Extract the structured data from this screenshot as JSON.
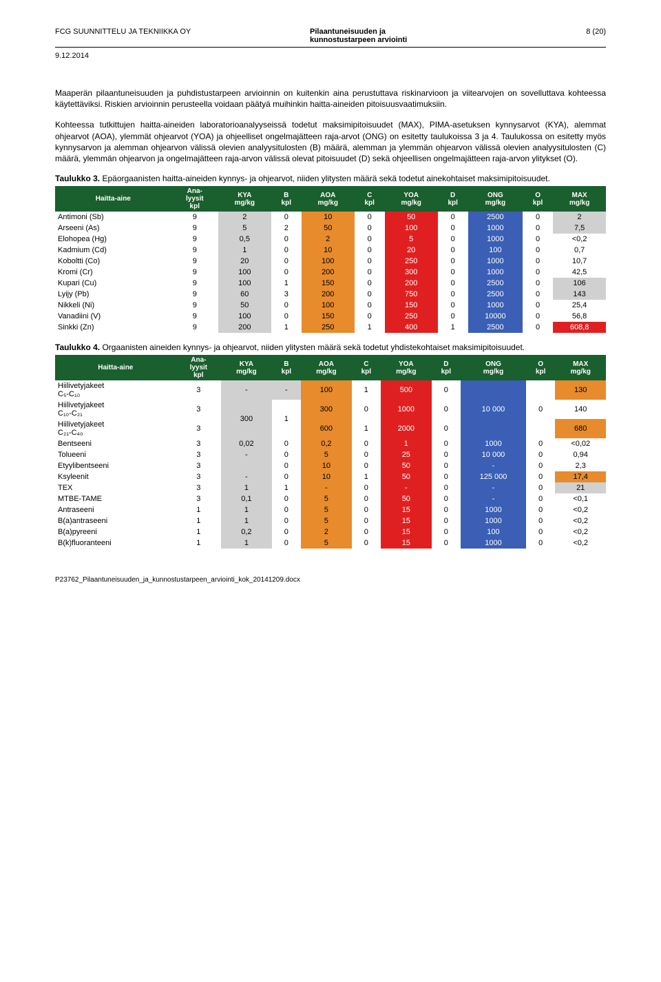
{
  "header": {
    "company": "FCG SUUNNITTELU JA TEKNIIKKA OY",
    "doc_title1": "Pilaantuneisuuden ja",
    "doc_title2": "kunnostustarpeen arviointi",
    "page": "8 (20)",
    "date": "9.12.2014"
  },
  "paragraphs": {
    "p1": "Maaperän pilaantuneisuuden ja puhdistustarpeen arvioinnin on kuitenkin aina perustuttava riskinarvioon ja viitearvojen on sovelluttava kohteessa käytettäviksi. Riskien arvioinnin perusteella voidaan päätyä muihinkin haitta-aineiden pitoisuusvaatimuksiin.",
    "p2": "Kohteessa tutkittujen haitta-aineiden laboratorioanalyyseissä todetut maksimipitoisuudet (MAX), PIMA-asetuksen kynnysarvot (KYA), alemmat ohjearvot (AOA), ylemmät ohjearvot (YOA) ja ohjeelliset ongelmajätteen raja-arvot (ONG) on esitetty taulukoissa 3 ja 4. Taulukossa on esitetty myös kynnysarvon ja alemman ohjearvon välissä olevien analyysitulosten (B) määrä, alemman ja ylemmän ohjearvon välissä olevien analyysitulosten (C) määrä, ylemmän ohjearvon ja ongelmajätteen raja-arvon välissä olevat pitoisuudet (D) sekä ohjeellisen ongelmajätteen raja-arvon ylitykset (O)."
  },
  "caption3_bold": "Taulukko 3.",
  "caption3_rest": " Epäorgaanisten haitta-aineiden kynnys- ja ohjearvot, niiden ylitysten määrä sekä todetut ainekohtaiset maksimipitoisuudet.",
  "caption4_bold": "Taulukko 4.",
  "caption4_rest": " Orgaanisten aineiden kynnys- ja ohjearvot, niiden ylitysten määrä sekä todetut yhdistekohtaiset maksimipitoisuudet.",
  "columns": [
    "Haitta-aine",
    "Ana-\nlyysit\nkpl",
    "KYA\nmg/kg",
    "B\nkpl",
    "AOA\nmg/kg",
    "C\nkpl",
    "YOA\nmg/kg",
    "D\nkpl",
    "ONG\nmg/kg",
    "O\nkpl",
    "MAX\nmg/kg"
  ],
  "colors": {
    "header_bg": "#1a5f2e",
    "grey": "#d0d0d0",
    "orange": "#e88b2d",
    "red": "#e02020",
    "blue": "#3a5fb5",
    "red_text": "#ffffff",
    "blue_text": "#ffffff",
    "orange_text": "#000000",
    "grey_text": "#000000",
    "black_text": "#000000"
  },
  "table3": [
    {
      "name": "Antimoni (Sb)",
      "ana": "9",
      "kya": "2",
      "b": "0",
      "aoa": "10",
      "c": "0",
      "yoa": "50",
      "d": "0",
      "ong": "2500",
      "o": "0",
      "max": "2",
      "max_bg": "grey"
    },
    {
      "name": "Arseeni (As)",
      "ana": "9",
      "kya": "5",
      "b": "2",
      "aoa": "50",
      "c": "0",
      "yoa": "100",
      "d": "0",
      "ong": "1000",
      "o": "0",
      "max": "7,5",
      "max_bg": "grey"
    },
    {
      "name": "Elohopea (Hg)",
      "ana": "9",
      "kya": "0,5",
      "b": "0",
      "aoa": "2",
      "c": "0",
      "yoa": "5",
      "d": "0",
      "ong": "1000",
      "o": "0",
      "max": "<0,2",
      "max_bg": ""
    },
    {
      "name": "Kadmium (Cd)",
      "ana": "9",
      "kya": "1",
      "b": "0",
      "aoa": "10",
      "c": "0",
      "yoa": "20",
      "d": "0",
      "ong": "100",
      "o": "0",
      "max": "0,7",
      "max_bg": ""
    },
    {
      "name": "Koboltti (Co)",
      "ana": "9",
      "kya": "20",
      "b": "0",
      "aoa": "100",
      "c": "0",
      "yoa": "250",
      "d": "0",
      "ong": "1000",
      "o": "0",
      "max": "10,7",
      "max_bg": ""
    },
    {
      "name": "Kromi (Cr)",
      "ana": "9",
      "kya": "100",
      "b": "0",
      "aoa": "200",
      "c": "0",
      "yoa": "300",
      "d": "0",
      "ong": "1000",
      "o": "0",
      "max": "42,5",
      "max_bg": ""
    },
    {
      "name": "Kupari (Cu)",
      "ana": "9",
      "kya": "100",
      "b": "1",
      "aoa": "150",
      "c": "0",
      "yoa": "200",
      "d": "0",
      "ong": "2500",
      "o": "0",
      "max": "106",
      "max_bg": "grey"
    },
    {
      "name": "Lyijy (Pb)",
      "ana": "9",
      "kya": "60",
      "b": "3",
      "aoa": "200",
      "c": "0",
      "yoa": "750",
      "d": "0",
      "ong": "2500",
      "o": "0",
      "max": "143",
      "max_bg": "grey"
    },
    {
      "name": "Nikkeli (Ni)",
      "ana": "9",
      "kya": "50",
      "b": "0",
      "aoa": "100",
      "c": "0",
      "yoa": "150",
      "d": "0",
      "ong": "1000",
      "o": "0",
      "max": "25,4",
      "max_bg": ""
    },
    {
      "name": "Vanadiini (V)",
      "ana": "9",
      "kya": "100",
      "b": "0",
      "aoa": "150",
      "c": "0",
      "yoa": "250",
      "d": "0",
      "ong": "10000",
      "o": "0",
      "max": "56,8",
      "max_bg": ""
    },
    {
      "name": "Sinkki (Zn)",
      "ana": "9",
      "kya": "200",
      "b": "1",
      "aoa": "250",
      "c": "1",
      "yoa": "400",
      "d": "1",
      "ong": "2500",
      "o": "0",
      "max": "608,8",
      "max_bg": "red"
    }
  ],
  "table4": [
    {
      "name": "Hiilivetyjakeet\nC₅-C₁₀",
      "ana": "3",
      "kya": "-",
      "b": "-",
      "aoa": "100",
      "c": "1",
      "yoa": "500",
      "d": "0",
      "ong": "",
      "o": "",
      "max": "130",
      "max_bg": "orange",
      "kya_rowspan": 0
    },
    {
      "name": "Hiilivetyjakeet\nC₁₀-C₂₁",
      "ana": "3",
      "kya": "300",
      "b": "1",
      "aoa": "300",
      "c": "0",
      "yoa": "1000",
      "d": "0",
      "ong": "10 000",
      "o": "0",
      "max": "140",
      "max_bg": "",
      "kya_rowspan": 2,
      "b_rowspan": 2
    },
    {
      "name": "Hiilivetyjakeet\nC₂₁-C₄₀",
      "ana": "3",
      "aoa": "600",
      "c": "1",
      "yoa": "2000",
      "d": "0",
      "ong": "",
      "o": "",
      "max": "680",
      "max_bg": "orange"
    },
    {
      "name": "Bentseeni",
      "ana": "3",
      "kya": "0,02",
      "b": "0",
      "aoa": "0,2",
      "c": "0",
      "yoa": "1",
      "d": "0",
      "ong": "1000",
      "o": "0",
      "max": "<0,02",
      "max_bg": ""
    },
    {
      "name": "Tolueeni",
      "ana": "3",
      "kya": "-",
      "b": "0",
      "aoa": "5",
      "c": "0",
      "yoa": "25",
      "d": "0",
      "ong": "10 000",
      "o": "0",
      "max": "0,94",
      "max_bg": ""
    },
    {
      "name": "Etyylibentseeni",
      "ana": "3",
      "kya": "",
      "b": "0",
      "aoa": "10",
      "c": "0",
      "yoa": "50",
      "d": "0",
      "ong": "-",
      "o": "0",
      "max": "2,3",
      "max_bg": ""
    },
    {
      "name": "Ksyleenit",
      "ana": "3",
      "kya": "-",
      "b": "0",
      "aoa": "10",
      "c": "1",
      "yoa": "50",
      "d": "0",
      "ong": "125 000",
      "o": "0",
      "max": "17,4",
      "max_bg": "orange"
    },
    {
      "name": "TEX",
      "ana": "3",
      "kya": "1",
      "b": "1",
      "aoa": "-",
      "c": "0",
      "yoa": "-",
      "d": "0",
      "ong": "-",
      "o": "0",
      "max": "21",
      "max_bg": "grey"
    },
    {
      "name": "MTBE-TAME",
      "ana": "3",
      "kya": "0,1",
      "b": "0",
      "aoa": "5",
      "c": "0",
      "yoa": "50",
      "d": "0",
      "ong": "-",
      "o": "0",
      "max": "<0,1",
      "max_bg": ""
    },
    {
      "name": "Antraseeni",
      "ana": "1",
      "kya": "1",
      "b": "0",
      "aoa": "5",
      "c": "0",
      "yoa": "15",
      "d": "0",
      "ong": "1000",
      "o": "0",
      "max": "<0,2",
      "max_bg": ""
    },
    {
      "name": "B(a)antraseeni",
      "ana": "1",
      "kya": "1",
      "b": "0",
      "aoa": "5",
      "c": "0",
      "yoa": "15",
      "d": "0",
      "ong": "1000",
      "o": "0",
      "max": "<0,2",
      "max_bg": ""
    },
    {
      "name": "B(a)pyreeni",
      "ana": "1",
      "kya": "0,2",
      "b": "0",
      "aoa": "2",
      "c": "0",
      "yoa": "15",
      "d": "0",
      "ong": "100",
      "o": "0",
      "max": "<0,2",
      "max_bg": ""
    },
    {
      "name": "B(k)fluoranteeni",
      "ana": "1",
      "kya": "1",
      "b": "0",
      "aoa": "5",
      "c": "0",
      "yoa": "15",
      "d": "0",
      "ong": "1000",
      "o": "0",
      "max": "<0,2",
      "max_bg": ""
    }
  ],
  "footer": "P23762_Pilaantuneisuuden_ja_kunnostustarpeen_arviointi_kok_20141209.docx"
}
